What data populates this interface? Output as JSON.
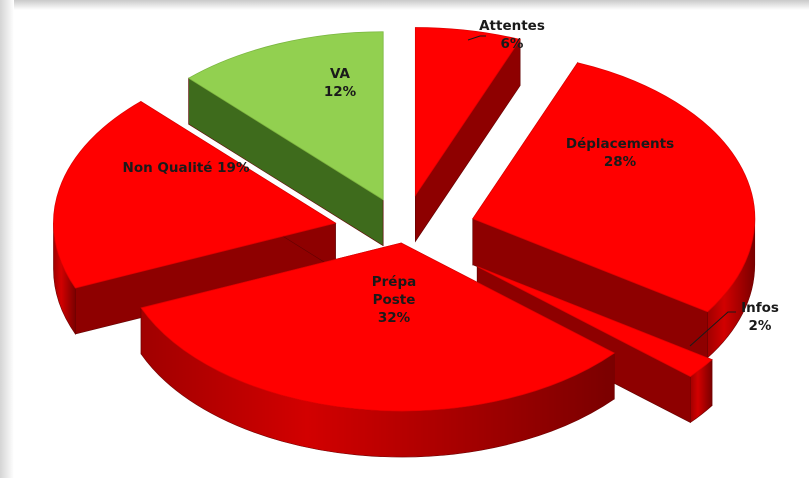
{
  "chart_data": {
    "type": "pie",
    "three_d": true,
    "exploded": true,
    "legend": "none",
    "slices": [
      {
        "name": "Attentes",
        "value": 6,
        "label": "6%",
        "color": "#ff0000",
        "side_color": "#c00000",
        "label_color": "#1a1a1a"
      },
      {
        "name": "Déplacements",
        "value": 28,
        "label": "28%",
        "color": "#ff0000",
        "side_color": "#c00000",
        "label_color": "#1a1a1a"
      },
      {
        "name": "Infos",
        "value": 2,
        "label": "2%",
        "color": "#ff0000",
        "side_color": "#c00000",
        "label_color": "#1a1a1a"
      },
      {
        "name": "Prépa Poste",
        "value": 32,
        "label": "32%",
        "color": "#ff0000",
        "side_color": "#c00000",
        "label_color": "#1a1a1a"
      },
      {
        "name": "Non Qualité",
        "value": 19,
        "label": "19%",
        "color": "#ff0000",
        "side_color": "#c00000",
        "label_color": "#1a1a1a"
      },
      {
        "name": "VA",
        "value": 12,
        "label": "12%",
        "color": "#92d050",
        "side_color": "#4f7a23",
        "label_color": "#1a1a1a"
      }
    ]
  }
}
